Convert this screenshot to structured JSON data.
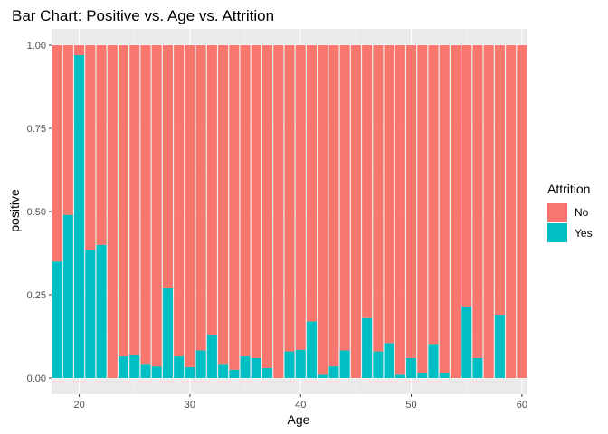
{
  "chart_data": {
    "type": "bar",
    "stacked": true,
    "normalized": true,
    "title": "Bar Chart: Positive vs. Age vs. Attrition",
    "xlabel": "Age",
    "ylabel": "positive",
    "xlim": [
      17.5,
      60.5
    ],
    "ylim": [
      0,
      1
    ],
    "x_ticks": [
      20,
      30,
      40,
      50,
      60
    ],
    "y_ticks": [
      0,
      0.25,
      0.5,
      0.75,
      1
    ],
    "y_tick_labels": [
      "0.00",
      "0.25",
      "0.50",
      "0.75",
      "1.00"
    ],
    "grid": true,
    "legend": {
      "title": "Attrition",
      "position": "right"
    },
    "x": [
      18,
      19,
      20,
      21,
      22,
      23,
      24,
      25,
      26,
      27,
      28,
      29,
      30,
      31,
      32,
      33,
      34,
      35,
      36,
      37,
      38,
      39,
      40,
      41,
      42,
      43,
      44,
      45,
      46,
      47,
      48,
      49,
      50,
      51,
      52,
      53,
      54,
      55,
      56,
      57,
      58,
      59,
      60
    ],
    "series": [
      {
        "name": "No",
        "color": "#F8766D",
        "values": [
          0.65,
          0.51,
          0.03,
          0.615,
          0.6,
          1.0,
          0.935,
          0.932,
          0.96,
          0.965,
          0.73,
          0.935,
          0.967,
          0.917,
          0.87,
          0.96,
          0.975,
          0.935,
          0.94,
          0.97,
          1.0,
          0.92,
          0.915,
          0.83,
          0.99,
          0.965,
          0.917,
          1.0,
          0.82,
          0.92,
          0.895,
          0.99,
          0.94,
          0.985,
          0.9,
          0.985,
          1.0,
          0.785,
          0.94,
          1.0,
          0.81,
          1.0,
          1.0
        ]
      },
      {
        "name": "Yes",
        "color": "#00BFC4",
        "values": [
          0.35,
          0.49,
          0.97,
          0.385,
          0.4,
          0.0,
          0.065,
          0.068,
          0.04,
          0.035,
          0.27,
          0.065,
          0.033,
          0.083,
          0.13,
          0.04,
          0.025,
          0.065,
          0.06,
          0.03,
          0.0,
          0.08,
          0.085,
          0.17,
          0.01,
          0.035,
          0.083,
          0.0,
          0.18,
          0.08,
          0.105,
          0.01,
          0.06,
          0.015,
          0.1,
          0.015,
          0.0,
          0.215,
          0.06,
          0.0,
          0.19,
          0.0,
          0.0
        ]
      }
    ]
  }
}
